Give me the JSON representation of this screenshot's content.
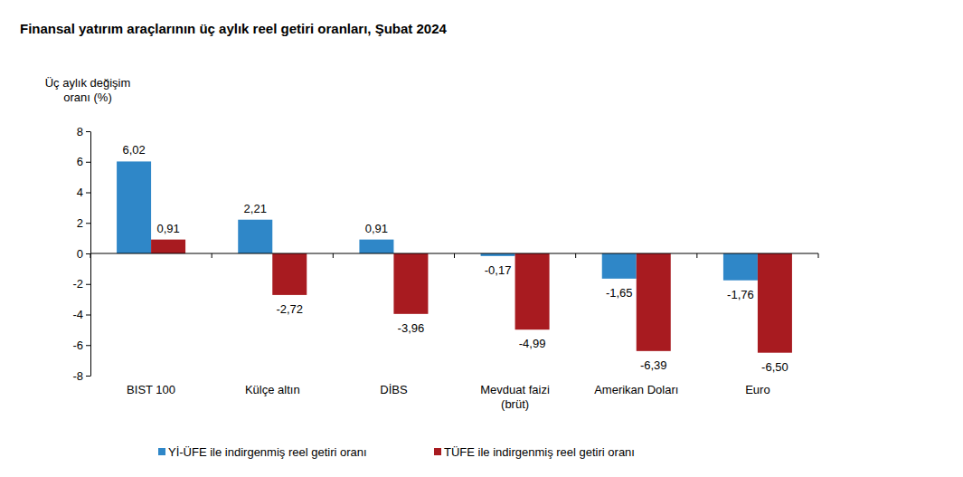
{
  "chart_data": {
    "type": "bar",
    "title": "Finansal yatırım araçlarının üç aylık reel getiri oranları, Şubat 2024",
    "y_label": "Üç aylık değişim\noranı (%)",
    "categories": [
      "BIST 100",
      "Külçe altın",
      "DİBS",
      "Mevduat faizi\n(brüt)",
      "Amerikan Doları",
      "Euro"
    ],
    "series": [
      {
        "name": "Yİ-ÜFE ile indirgenmiş reel getiri oranı",
        "color": "#2f87c8",
        "values": [
          6.02,
          2.21,
          0.91,
          -0.17,
          -1.65,
          -1.76
        ],
        "value_labels": [
          "6,02",
          "2,21",
          "0,91",
          "-0,17",
          "-1,65",
          "-1,76"
        ]
      },
      {
        "name": "TÜFE ile indirgenmiş reel getiri oranı",
        "color": "#a81b20",
        "values": [
          0.91,
          -2.72,
          -3.96,
          -4.99,
          -6.39,
          -6.5
        ],
        "value_labels": [
          "0,91",
          "-2,72",
          "-3,96",
          "-4,99",
          "-6,39",
          "-6,50"
        ]
      }
    ],
    "ylim": [
      -8,
      8
    ],
    "yticks": [
      -8,
      -6,
      -4,
      -2,
      0,
      2,
      4,
      6,
      8
    ],
    "grid": false,
    "legend": "bottom",
    "data_labels": true
  }
}
